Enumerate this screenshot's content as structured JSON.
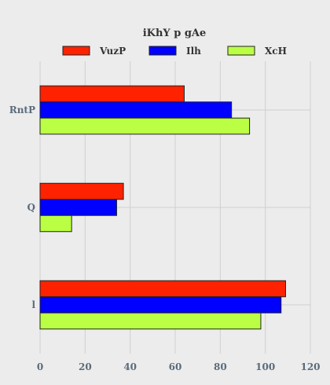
{
  "chart_data": {
    "type": "bar",
    "orientation": "horizontal",
    "title": "iKhY p gAe",
    "categories": [
      "RntP",
      "Q",
      "l"
    ],
    "series": [
      {
        "name": "VuzP",
        "color": "#ff2200",
        "values": [
          64,
          37,
          109
        ]
      },
      {
        "name": "Ilh",
        "color": "#0000ff",
        "values": [
          85,
          34,
          107
        ]
      },
      {
        "name": "XcH",
        "color": "#bbff44",
        "values": [
          93,
          14,
          98
        ]
      }
    ],
    "xlim": [
      0,
      120
    ],
    "xticks": [
      "0",
      "20",
      "40",
      "60",
      "80",
      "100",
      "120"
    ],
    "grid": true,
    "legend_position": "top"
  }
}
